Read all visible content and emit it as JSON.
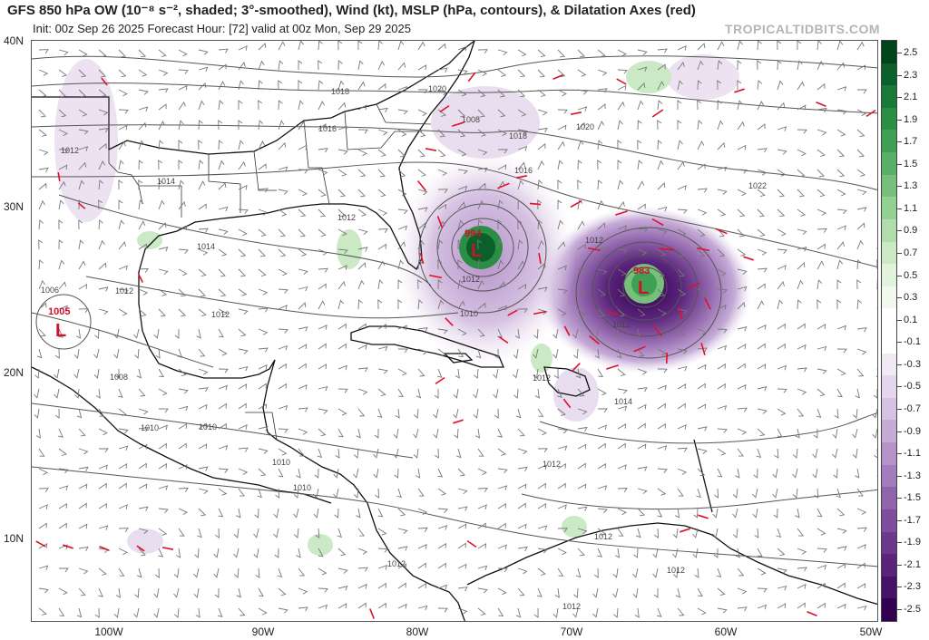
{
  "header": {
    "title": "GFS 850 hPa OW (10⁻⁸ s⁻², shaded; 3°-smoothed), Wind (kt), MSLP (hPa, contours), & Dilatation Axes (red)",
    "subtitle": "Init: 00z Sep 26 2025   Forecast Hour: [72]   valid at 00z Mon, Sep 29 2025",
    "brand": "TROPICALTIDBITS.COM"
  },
  "axes": {
    "lat_labels": [
      "40N",
      "30N",
      "20N",
      "10N"
    ],
    "lon_labels": [
      "100W",
      "90W",
      "80W",
      "70W",
      "60W",
      "50W"
    ]
  },
  "colorbar": {
    "labels": [
      "2.5",
      "2.3",
      "2.1",
      "1.9",
      "1.7",
      "1.5",
      "1.3",
      "1.1",
      "0.9",
      "0.7",
      "0.5",
      "0.3",
      "0.1",
      "-0.1",
      "-0.3",
      "-0.5",
      "-0.7",
      "-0.9",
      "-1.1",
      "-1.3",
      "-1.5",
      "-1.7",
      "-1.9",
      "-2.1",
      "-2.3",
      "-2.5"
    ],
    "positive_colors": [
      "#00441b",
      "#0b5f2a",
      "#1a7936",
      "#2a8e45",
      "#3fa054",
      "#58b068",
      "#76c07c",
      "#94cf93",
      "#b1dcab",
      "#cae9c4",
      "#e1f3dc",
      "#f1f9ef",
      "#ffffff"
    ],
    "negative_colors": [
      "#ffffff",
      "#f1eaf4",
      "#e4d6ec",
      "#d6c2e2",
      "#c6abd7",
      "#b593c9",
      "#a37cbb",
      "#9064ab",
      "#7e4e9c",
      "#6b388b",
      "#59247a",
      "#461267",
      "#32004f"
    ]
  },
  "lows": [
    {
      "pressure": "994",
      "symbol": "L"
    },
    {
      "pressure": "983",
      "symbol": "L"
    },
    {
      "pressure": "1005",
      "symbol": "L"
    }
  ],
  "isobars": [
    "1020",
    "1018",
    "1016",
    "1012",
    "1014",
    "1014",
    "1012",
    "1006",
    "1012",
    "1012",
    "1008",
    "1010",
    "1010",
    "1010",
    "1012",
    "1010",
    "1012",
    "1012",
    "1012",
    "1020",
    "1018",
    "1016",
    "1022",
    "1012",
    "1012",
    "1014",
    "1008",
    "1010",
    "1012",
    "1012",
    "1012"
  ]
}
